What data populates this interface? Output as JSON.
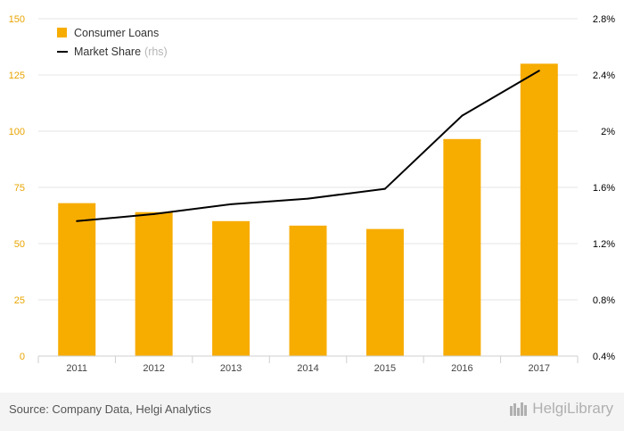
{
  "chart_data": {
    "type": "bar+line",
    "categories": [
      "2011",
      "2012",
      "2013",
      "2014",
      "2015",
      "2016",
      "2017"
    ],
    "series": [
      {
        "name": "Consumer Loans",
        "type": "bar",
        "axis": "left",
        "color": "#f7ac00",
        "values": [
          68,
          64,
          60,
          58,
          56.5,
          96.5,
          130
        ]
      },
      {
        "name": "Market Share",
        "type": "line",
        "axis": "right",
        "color": "#000000",
        "values": [
          1.36,
          1.41,
          1.48,
          1.52,
          1.59,
          2.11,
          2.43
        ]
      }
    ],
    "y_left": {
      "min": 0,
      "max": 150,
      "ticks": [
        0,
        25,
        50,
        75,
        100,
        125,
        150
      ],
      "tick_labels": [
        "0",
        "25",
        "50",
        "75",
        "100",
        "125",
        "150"
      ],
      "label_color": "#e8a400"
    },
    "y_right": {
      "min": 0.4,
      "max": 2.8,
      "ticks": [
        0.4,
        0.8,
        1.2,
        1.6,
        2.0,
        2.4,
        2.8
      ],
      "tick_labels": [
        "0.4%",
        "0.8%",
        "1.2%",
        "1.6%",
        "2%",
        "2.4%",
        "2.8%"
      ],
      "label_color": "#000000"
    },
    "grid": true,
    "legend": {
      "position": "top-left",
      "items": [
        {
          "label": "Consumer Loans",
          "note": ""
        },
        {
          "label": "Market Share",
          "note": "(rhs)"
        }
      ]
    }
  },
  "footer": {
    "source": "Source: Company Data, Helgi Analytics",
    "brand": "HelgiLibrary"
  }
}
